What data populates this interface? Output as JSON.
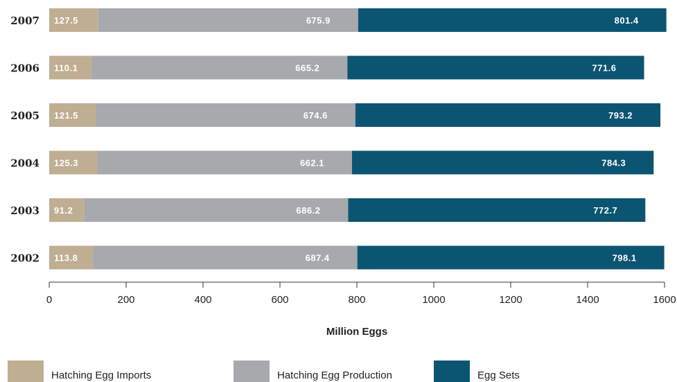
{
  "chart_data": {
    "type": "bar",
    "orientation": "horizontal",
    "stacked": true,
    "categories": [
      "2007",
      "2006",
      "2005",
      "2004",
      "2003",
      "2002"
    ],
    "series": [
      {
        "name": "Hatching Egg Imports",
        "color": "#bfae92",
        "values": [
          127.5,
          110.1,
          121.5,
          125.3,
          91.2,
          113.8
        ]
      },
      {
        "name": "Hatching Egg Production",
        "color": "#a7a9ac",
        "values": [
          675.9,
          665.2,
          674.6,
          662.1,
          686.2,
          687.4
        ]
      },
      {
        "name": "Egg Sets",
        "color": "#0b5573",
        "values": [
          801.4,
          771.6,
          793.2,
          784.3,
          772.7,
          798.1
        ]
      }
    ],
    "xlabel": "Million Eggs",
    "xlim": [
      0,
      1600
    ],
    "xticks": [
      "0",
      "200",
      "400",
      "600",
      "800",
      "1000",
      "1200",
      "1400",
      "1600"
    ],
    "grid": false,
    "legend": "bottom"
  }
}
